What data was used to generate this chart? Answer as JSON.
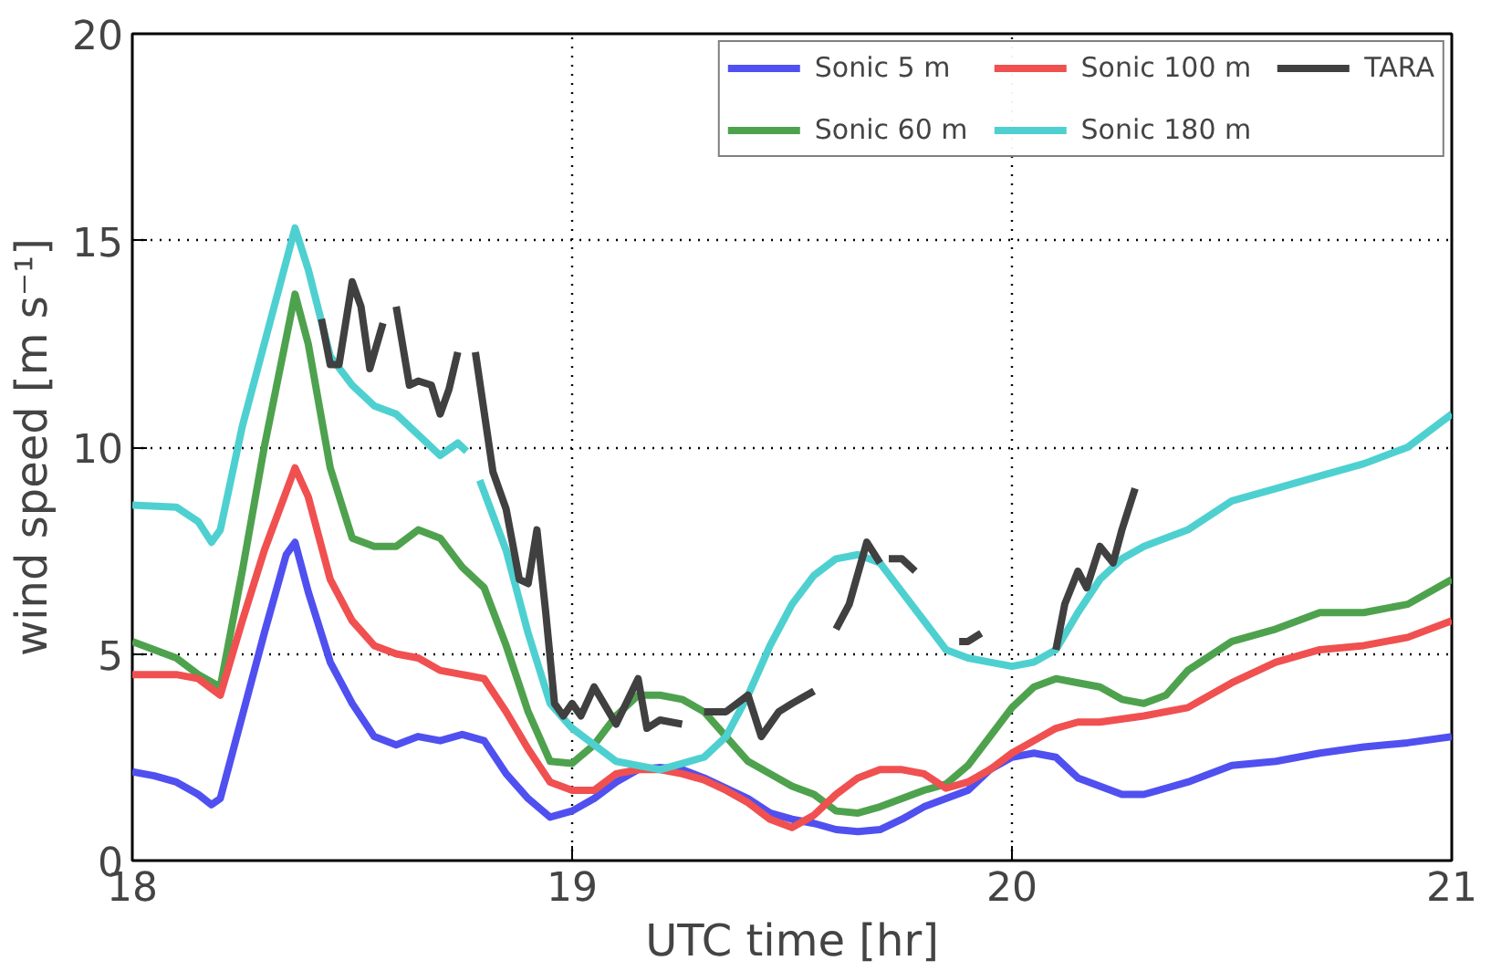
{
  "chart_data": {
    "type": "line",
    "xlabel": "UTC time [hr]",
    "ylabel": "wind speed [m s⁻¹]",
    "xlim": [
      18,
      21
    ],
    "ylim": [
      0,
      20
    ],
    "xticks": [
      18,
      19,
      20,
      21
    ],
    "yticks": [
      0,
      5,
      10,
      15,
      20
    ],
    "grid": true,
    "legend": "top right",
    "line_style": "solid",
    "marker": "none",
    "series": [
      {
        "name": "Sonic 5 m",
        "color": "#5050f0",
        "x": [
          18.0,
          18.05,
          18.1,
          18.15,
          18.18,
          18.2,
          18.25,
          18.3,
          18.35,
          18.37,
          18.4,
          18.45,
          18.5,
          18.55,
          18.6,
          18.65,
          18.7,
          18.75,
          18.8,
          18.85,
          18.9,
          18.95,
          19.0,
          19.05,
          19.1,
          19.15,
          19.2,
          19.25,
          19.3,
          19.4,
          19.45,
          19.5,
          19.55,
          19.6,
          19.65,
          19.7,
          19.75,
          19.8,
          19.85,
          19.9,
          19.95,
          20.0,
          20.05,
          20.1,
          20.15,
          20.2,
          20.25,
          20.3,
          20.35,
          20.4,
          20.5,
          20.6,
          20.7,
          20.8,
          20.9,
          21.0
        ],
        "values": [
          2.15,
          2.05,
          1.9,
          1.6,
          1.35,
          1.5,
          3.5,
          5.5,
          7.4,
          7.7,
          6.5,
          4.8,
          3.8,
          3.0,
          2.8,
          3.0,
          2.9,
          3.05,
          2.9,
          2.1,
          1.5,
          1.05,
          1.2,
          1.5,
          1.9,
          2.2,
          2.25,
          2.2,
          2.0,
          1.5,
          1.15,
          1.0,
          0.9,
          0.75,
          0.7,
          0.75,
          1.0,
          1.3,
          1.5,
          1.7,
          2.2,
          2.5,
          2.6,
          2.5,
          2.0,
          1.8,
          1.6,
          1.6,
          1.75,
          1.9,
          2.3,
          2.4,
          2.6,
          2.75,
          2.85,
          3.0
        ]
      },
      {
        "name": "Sonic 60 m",
        "color": "#4ea24e",
        "x": [
          18.0,
          18.05,
          18.1,
          18.15,
          18.2,
          18.25,
          18.3,
          18.37,
          18.4,
          18.45,
          18.5,
          18.55,
          18.6,
          18.65,
          18.7,
          18.75,
          18.8,
          18.85,
          18.9,
          18.95,
          19.0,
          19.05,
          19.1,
          19.15,
          19.2,
          19.25,
          19.3,
          19.35,
          19.4,
          19.45,
          19.5,
          19.55,
          19.6,
          19.65,
          19.7,
          19.75,
          19.8,
          19.85,
          19.9,
          19.95,
          20.0,
          20.05,
          20.1,
          20.15,
          20.2,
          20.25,
          20.3,
          20.35,
          20.4,
          20.5,
          20.6,
          20.7,
          20.8,
          20.9,
          21.0
        ],
        "values": [
          5.3,
          5.1,
          4.9,
          4.5,
          4.2,
          7.0,
          10.0,
          13.7,
          12.5,
          9.5,
          7.8,
          7.6,
          7.6,
          8.0,
          7.8,
          7.1,
          6.6,
          5.2,
          3.6,
          2.4,
          2.35,
          2.8,
          3.5,
          4.0,
          4.0,
          3.9,
          3.6,
          3.0,
          2.4,
          2.1,
          1.8,
          1.6,
          1.2,
          1.15,
          1.3,
          1.5,
          1.7,
          1.85,
          2.3,
          3.0,
          3.7,
          4.2,
          4.4,
          4.3,
          4.2,
          3.9,
          3.8,
          4.0,
          4.6,
          5.3,
          5.6,
          6.0,
          6.0,
          6.2,
          6.8
        ]
      },
      {
        "name": "Sonic 100 m",
        "color": "#f05050",
        "x": [
          18.0,
          18.1,
          18.15,
          18.2,
          18.25,
          18.3,
          18.37,
          18.4,
          18.45,
          18.5,
          18.55,
          18.6,
          18.65,
          18.7,
          18.75,
          18.8,
          18.85,
          18.9,
          18.95,
          19.0,
          19.05,
          19.1,
          19.15,
          19.2,
          19.25,
          19.3,
          19.35,
          19.4,
          19.45,
          19.5,
          19.55,
          19.6,
          19.65,
          19.7,
          19.75,
          19.8,
          19.85,
          19.9,
          19.95,
          20.0,
          20.05,
          20.1,
          20.15,
          20.2,
          20.3,
          20.4,
          20.5,
          20.6,
          20.7,
          20.8,
          20.9,
          21.0
        ],
        "values": [
          4.5,
          4.5,
          4.4,
          4.0,
          5.8,
          7.5,
          9.5,
          8.8,
          6.8,
          5.8,
          5.2,
          5.0,
          4.9,
          4.6,
          4.5,
          4.4,
          3.6,
          2.7,
          1.9,
          1.7,
          1.7,
          2.1,
          2.2,
          2.2,
          2.1,
          1.95,
          1.7,
          1.4,
          1.0,
          0.8,
          1.1,
          1.6,
          2.0,
          2.2,
          2.2,
          2.1,
          1.75,
          1.9,
          2.2,
          2.6,
          2.9,
          3.2,
          3.35,
          3.35,
          3.5,
          3.7,
          4.3,
          4.8,
          5.1,
          5.2,
          5.4,
          5.8
        ]
      },
      {
        "name": "Sonic 180 m",
        "color": "#4fd0d0",
        "x": [
          18.0,
          18.1,
          18.15,
          18.18,
          18.2,
          18.25,
          18.3,
          18.37,
          18.4,
          18.45,
          18.5,
          18.55,
          18.6,
          18.65,
          18.7,
          18.74,
          18.76,
          18.775,
          18.79,
          18.85,
          18.9,
          18.95,
          19.0,
          19.05,
          19.1,
          19.15,
          19.2,
          19.25,
          19.3,
          19.35,
          19.4,
          19.45,
          19.5,
          19.55,
          19.6,
          19.65,
          19.7,
          19.75,
          19.8,
          19.85,
          19.9,
          19.95,
          20.0,
          20.05,
          20.1,
          20.15,
          20.2,
          20.25,
          20.3,
          20.4,
          20.5,
          20.6,
          20.7,
          20.8,
          20.9,
          21.0
        ],
        "values": [
          8.6,
          8.55,
          8.2,
          7.7,
          8.0,
          10.5,
          12.5,
          15.3,
          14.3,
          12.2,
          11.5,
          11.0,
          10.8,
          10.3,
          9.8,
          10.1,
          9.9,
          null,
          9.2,
          7.5,
          5.5,
          3.8,
          3.2,
          2.8,
          2.4,
          2.3,
          2.2,
          2.35,
          2.5,
          3.0,
          4.0,
          5.2,
          6.2,
          6.9,
          7.3,
          7.4,
          7.2,
          6.5,
          5.8,
          5.1,
          4.9,
          4.8,
          4.7,
          4.8,
          5.1,
          6.0,
          6.8,
          7.3,
          7.6,
          8.0,
          8.7,
          9.0,
          9.3,
          9.6,
          10.0,
          10.8
        ]
      },
      {
        "name": "TARA",
        "color": "#404040",
        "x": [
          18.43,
          18.45,
          18.47,
          18.5,
          18.52,
          18.54,
          18.57,
          18.585,
          18.6,
          18.63,
          18.65,
          18.68,
          18.7,
          18.72,
          18.74,
          18.76,
          18.78,
          18.82,
          18.85,
          18.88,
          18.9,
          18.92,
          18.94,
          18.96,
          18.98,
          19.0,
          19.02,
          19.05,
          19.1,
          19.15,
          19.17,
          19.2,
          19.25,
          19.275,
          19.3,
          19.35,
          19.4,
          19.43,
          19.47,
          19.5,
          19.55,
          19.575,
          19.6,
          19.63,
          19.67,
          19.7,
          19.71,
          19.72,
          19.75,
          19.78,
          19.83,
          19.88,
          19.9,
          19.93,
          20.0,
          20.1,
          20.12,
          20.15,
          20.17,
          20.2,
          20.23,
          20.25,
          20.28
        ],
        "values": [
          13.1,
          12.0,
          12.0,
          14.0,
          13.4,
          11.9,
          13.0,
          null,
          13.4,
          11.5,
          11.6,
          11.5,
          10.8,
          11.4,
          12.3,
          null,
          12.3,
          9.4,
          8.5,
          6.8,
          6.7,
          8.0,
          6.0,
          3.8,
          3.5,
          3.8,
          3.5,
          4.2,
          3.3,
          4.4,
          3.2,
          3.4,
          3.3,
          null,
          3.6,
          3.6,
          4.0,
          3.0,
          3.6,
          3.8,
          4.1,
          null,
          5.6,
          6.2,
          7.7,
          7.2,
          null,
          7.3,
          7.3,
          7.0,
          null,
          5.3,
          5.3,
          5.5,
          null,
          5.1,
          6.2,
          7.0,
          6.6,
          7.6,
          7.2,
          8.0,
          9.0
        ]
      }
    ]
  }
}
